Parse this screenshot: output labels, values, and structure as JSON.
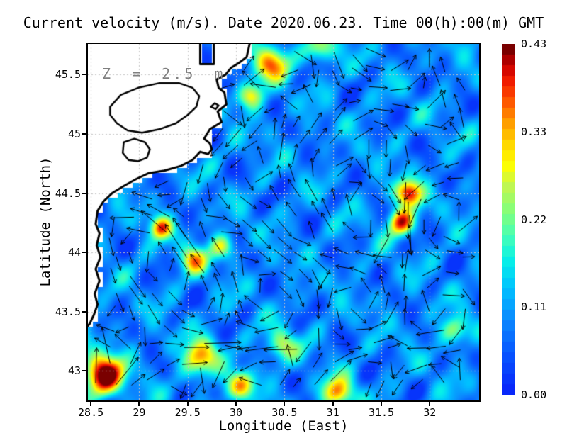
{
  "chart_data": {
    "type": "heatmap",
    "title": "Current velocity (m/s). Date 2020.06.23. Time 00(h):00(m) GMT",
    "xlabel": "Longitude (East)",
    "ylabel": "Latitude (North)",
    "annotation": "Z = 2.5 m",
    "annotation_color": "#7f7f7f",
    "units": "m/s",
    "xlim": [
      28.47,
      32.51
    ],
    "ylim": [
      42.75,
      45.76
    ],
    "x_ticks": [
      {
        "value": 28.5,
        "label": "28.5"
      },
      {
        "value": 29,
        "label": "29"
      },
      {
        "value": 29.5,
        "label": "29.5"
      },
      {
        "value": 30,
        "label": "30"
      },
      {
        "value": 30.5,
        "label": "30.5"
      },
      {
        "value": 31,
        "label": "31"
      },
      {
        "value": 31.5,
        "label": "31.5"
      },
      {
        "value": 32,
        "label": "32"
      }
    ],
    "y_ticks": [
      {
        "value": 45.5,
        "label": "45.5"
      },
      {
        "value": 45,
        "label": "45"
      },
      {
        "value": 44.5,
        "label": "44.5"
      },
      {
        "value": 44,
        "label": "44"
      },
      {
        "value": 43.5,
        "label": "43.5"
      },
      {
        "value": 43,
        "label": "43"
      }
    ],
    "grid": true,
    "grid_color": "#c4c4c4",
    "colorbar": {
      "min": 0.0,
      "max": 0.43,
      "steps": 33,
      "ticks": [
        {
          "value": 0.43,
          "label": "0.43"
        },
        {
          "value": 0.33,
          "label": "0.33"
        },
        {
          "value": 0.22,
          "label": "0.22"
        },
        {
          "value": 0.11,
          "label": "0.11"
        },
        {
          "value": 0.0,
          "label": "0.00"
        }
      ]
    },
    "colormap": [
      [
        0.0,
        "#0828fa"
      ],
      [
        0.1,
        "#0653ff"
      ],
      [
        0.2,
        "#0b86fe"
      ],
      [
        0.3,
        "#00c3ff"
      ],
      [
        0.38,
        "#07f0e8"
      ],
      [
        0.45,
        "#45ffb7"
      ],
      [
        0.52,
        "#81ff7c"
      ],
      [
        0.6,
        "#c3f64f"
      ],
      [
        0.66,
        "#ffff00"
      ],
      [
        0.72,
        "#ffd800"
      ],
      [
        0.78,
        "#ffa000"
      ],
      [
        0.84,
        "#ff5d00"
      ],
      [
        0.9,
        "#f52000"
      ],
      [
        0.95,
        "#cc0000"
      ],
      [
        1.0,
        "#7a0000"
      ]
    ],
    "field": {
      "base": 0.088,
      "noise_amp": 0.05,
      "hotspots": [
        [
          28.63,
          42.97,
          0.38,
          20
        ],
        [
          29.22,
          44.21,
          0.27,
          11
        ],
        [
          29.56,
          43.94,
          0.22,
          13
        ],
        [
          29.63,
          43.12,
          0.24,
          18
        ],
        [
          30.47,
          43.22,
          0.17,
          15
        ],
        [
          31.78,
          44.5,
          0.34,
          13
        ],
        [
          31.7,
          44.26,
          0.3,
          13
        ],
        [
          30.35,
          45.6,
          0.25,
          18
        ],
        [
          30.15,
          45.32,
          0.2,
          13
        ],
        [
          31.05,
          42.82,
          0.26,
          15
        ],
        [
          30.88,
          45.72,
          0.18,
          14
        ],
        [
          29.84,
          44.05,
          0.18,
          12
        ],
        [
          32.25,
          43.35,
          0.16,
          14
        ],
        [
          30.06,
          42.88,
          0.22,
          14
        ]
      ]
    },
    "arrows": {
      "spacing": 26,
      "seed": 7,
      "len_base": 14,
      "len_scale": 130,
      "len_max": 62,
      "head": 6,
      "color": "#000000"
    },
    "coastline": {
      "land_color": "#ffffff",
      "stroke": "#000000",
      "stroke_width": 3,
      "mask_polygon": [
        [
          28.47,
          45.76
        ],
        [
          29.63,
          45.76
        ],
        [
          29.63,
          45.59
        ],
        [
          29.77,
          45.59
        ],
        [
          29.77,
          45.76
        ],
        [
          30.14,
          45.76
        ],
        [
          30.11,
          45.65
        ],
        [
          30.03,
          45.6
        ],
        [
          29.95,
          45.56
        ],
        [
          29.89,
          45.5
        ],
        [
          29.8,
          45.46
        ],
        [
          29.82,
          45.39
        ],
        [
          29.88,
          45.35
        ],
        [
          29.9,
          45.25
        ],
        [
          29.81,
          45.19
        ],
        [
          29.85,
          45.1
        ],
        [
          29.73,
          45.04
        ],
        [
          29.67,
          44.96
        ],
        [
          29.73,
          44.92
        ],
        [
          29.75,
          44.87
        ],
        [
          29.71,
          44.83
        ],
        [
          29.63,
          44.85
        ],
        [
          29.55,
          44.78
        ],
        [
          29.43,
          44.73
        ],
        [
          29.26,
          44.69
        ],
        [
          29.1,
          44.67
        ],
        [
          28.97,
          44.62
        ],
        [
          28.84,
          44.56
        ],
        [
          28.72,
          44.5
        ],
        [
          28.63,
          44.43
        ],
        [
          28.57,
          44.35
        ],
        [
          28.55,
          44.24
        ],
        [
          28.59,
          44.16
        ],
        [
          28.56,
          44.06
        ],
        [
          28.6,
          43.96
        ],
        [
          28.55,
          43.86
        ],
        [
          28.59,
          43.76
        ],
        [
          28.54,
          43.65
        ],
        [
          28.57,
          43.56
        ],
        [
          28.53,
          43.47
        ],
        [
          28.49,
          43.4
        ],
        [
          28.47,
          43.38
        ]
      ],
      "stroke_ranges": [
        [
          1,
          4
        ],
        [
          5,
          41
        ]
      ],
      "lagoons": [
        [
          [
            28.7,
            45.23
          ],
          [
            28.81,
            45.33
          ],
          [
            28.99,
            45.39
          ],
          [
            29.21,
            45.43
          ],
          [
            29.41,
            45.43
          ],
          [
            29.55,
            45.39
          ],
          [
            29.62,
            45.32
          ],
          [
            29.59,
            45.23
          ],
          [
            29.5,
            45.16
          ],
          [
            29.38,
            45.09
          ],
          [
            29.21,
            45.04
          ],
          [
            29.03,
            45.01
          ],
          [
            28.88,
            45.03
          ],
          [
            28.77,
            45.09
          ],
          [
            28.7,
            45.16
          ]
        ],
        [
          [
            28.84,
            44.93
          ],
          [
            28.95,
            44.96
          ],
          [
            29.06,
            44.93
          ],
          [
            29.11,
            44.87
          ],
          [
            29.08,
            44.8
          ],
          [
            28.99,
            44.77
          ],
          [
            28.89,
            44.78
          ],
          [
            28.83,
            44.84
          ]
        ]
      ],
      "islands": [
        [
          [
            29.74,
            45.23
          ],
          [
            29.78,
            45.26
          ],
          [
            29.82,
            45.24
          ],
          [
            29.79,
            45.21
          ]
        ]
      ]
    }
  }
}
